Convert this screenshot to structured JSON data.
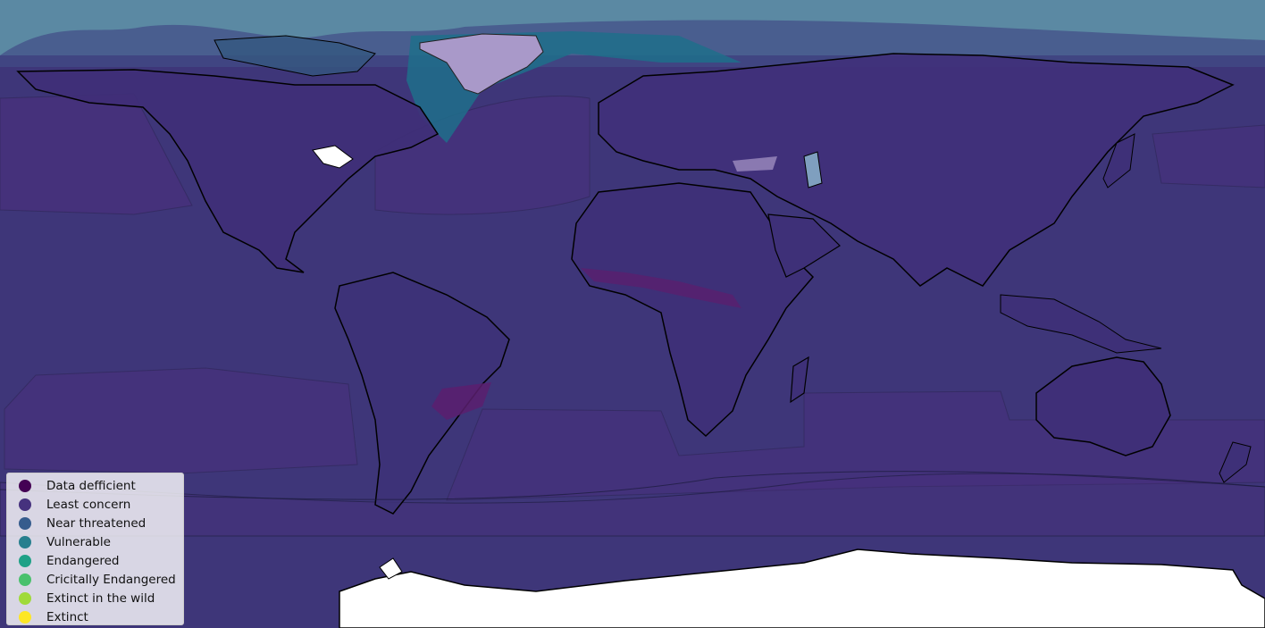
{
  "map": {
    "colors": {
      "ocean_top": "#5b89a3",
      "range_base": "#3e3679",
      "range_alt": "#4a2e7e",
      "coastline": "#000000",
      "land_unmapped": "#ffffff",
      "greenland_range": "#a999c9",
      "vulnerable_band": "#1f6f8b",
      "data_deficient_patch": "#5a1f6e"
    }
  },
  "legend": {
    "entries": [
      {
        "label": "Data defficient",
        "color": "#440154"
      },
      {
        "label": "Least concern",
        "color": "#46327e"
      },
      {
        "label": "Near threatened",
        "color": "#365c8d"
      },
      {
        "label": "Vulnerable",
        "color": "#277f8e"
      },
      {
        "label": "Endangered",
        "color": "#1fa187"
      },
      {
        "label": "Cricitally Endangered",
        "color": "#4ac16d"
      },
      {
        "label": "Extinct in the wild",
        "color": "#a0da39"
      },
      {
        "label": "Extinct",
        "color": "#fde725"
      }
    ]
  }
}
